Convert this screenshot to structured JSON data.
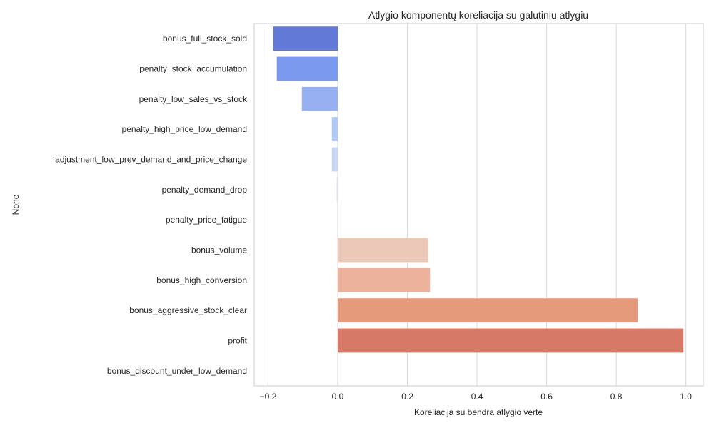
{
  "chart_data": {
    "type": "bar",
    "orientation": "horizontal",
    "title": "Atlygio komponentų koreliacija su galutiniu atlygiu",
    "xlabel": "Koreliacija su bendra atlygio verte",
    "ylabel": "None",
    "xlim": [
      -0.24,
      1.05
    ],
    "xticks": [
      -0.2,
      0.0,
      0.2,
      0.4,
      0.6,
      0.8,
      1.0
    ],
    "xtick_labels": [
      "−0.2",
      "0.0",
      "0.2",
      "0.4",
      "0.6",
      "0.8",
      "1.0"
    ],
    "grid": "vertical",
    "categories": [
      "bonus_full_stock_sold",
      "penalty_stock_accumulation",
      "penalty_low_sales_vs_stock",
      "penalty_high_price_low_demand",
      "adjustment_low_prev_demand_and_price_change",
      "penalty_demand_drop",
      "penalty_price_fatigue",
      "bonus_volume",
      "bonus_high_conversion",
      "bonus_aggressive_stock_clear",
      "profit",
      "bonus_discount_under_low_demand"
    ],
    "values": [
      -0.185,
      -0.175,
      -0.103,
      -0.017,
      -0.017,
      -0.003,
      0.0,
      0.26,
      0.265,
      0.862,
      0.993,
      0.0
    ],
    "colors": [
      "#6279d7",
      "#7b99ef",
      "#96b0f2",
      "#b1c8f5",
      "#c7d6f0",
      "#dde3ef",
      "#eedfd6",
      "#ecc8b9",
      "#ecb29b",
      "#e69a7c",
      "#d67a67",
      "#c4574a"
    ]
  }
}
